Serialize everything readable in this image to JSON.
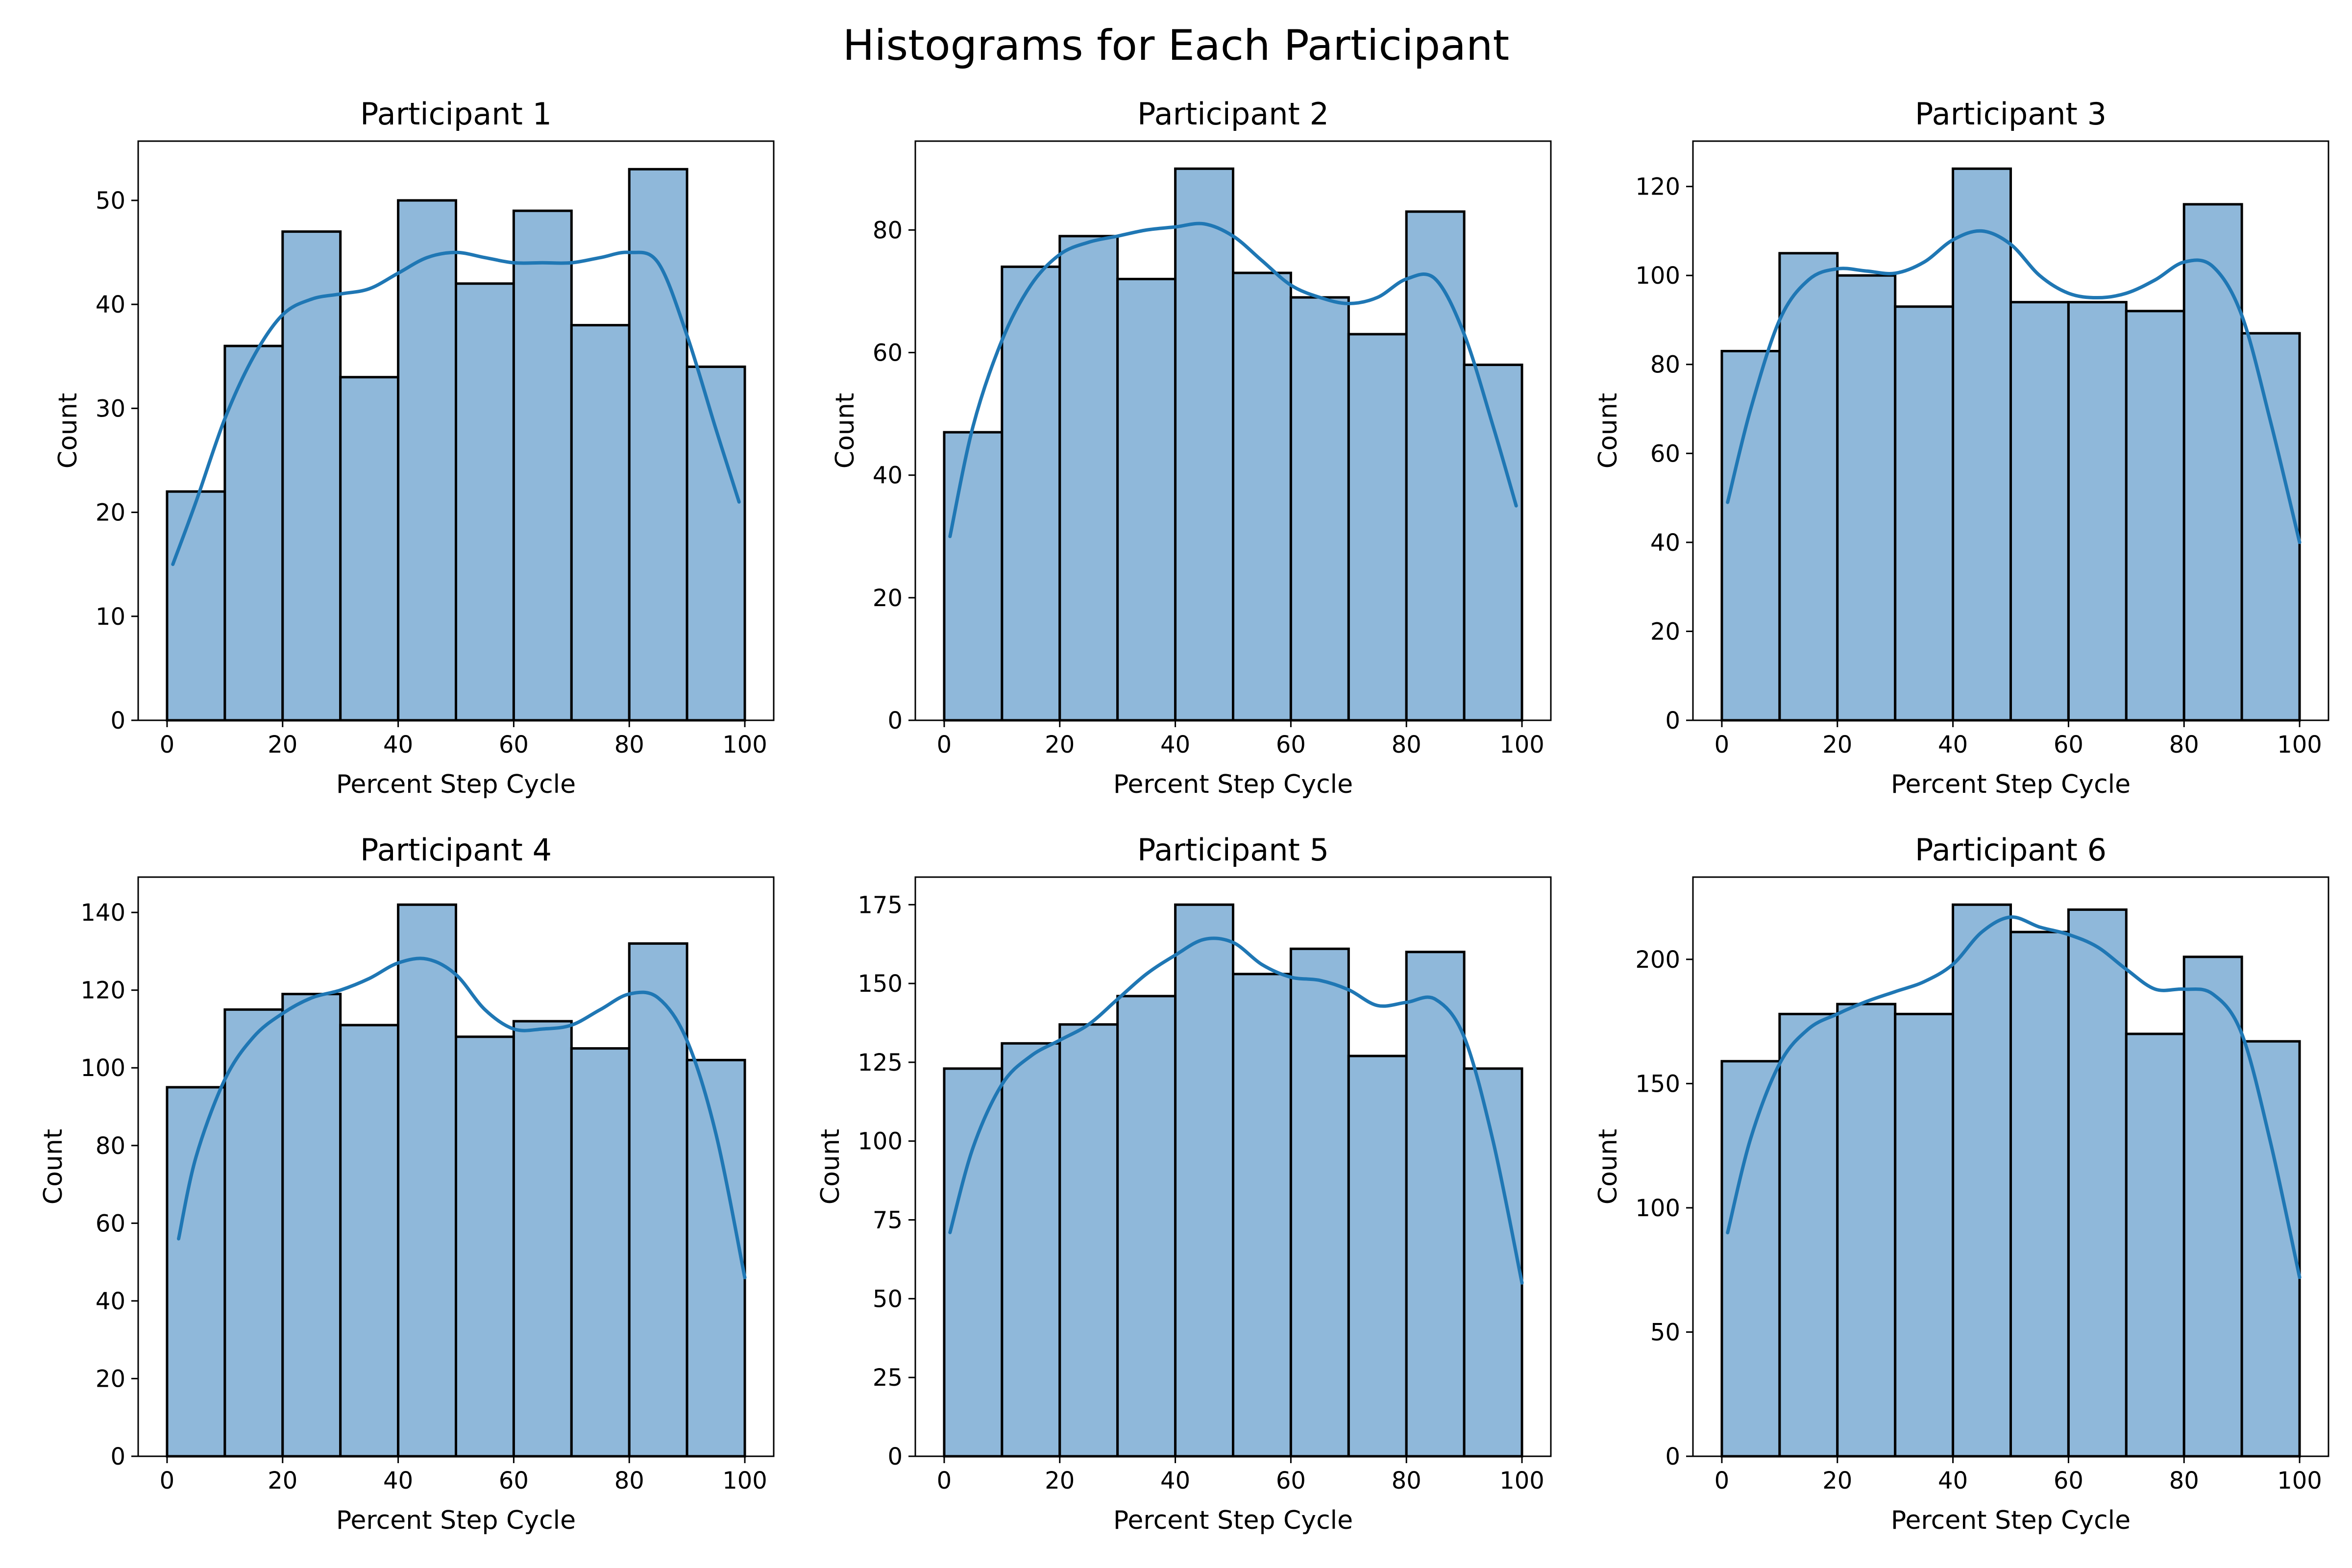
{
  "figure": {
    "title": "Histograms for Each Participant",
    "colors": {
      "bar_fill": "#8fb8da",
      "bar_edge": "#000000",
      "kde_line": "#1f77b4"
    }
  },
  "chart_data": [
    {
      "type": "bar",
      "title": "Participant 1",
      "xlabel": "Percent Step Cycle",
      "ylabel": "Count",
      "xlim": [
        -5,
        105
      ],
      "ylim": [
        0,
        55.7
      ],
      "xticks": [
        0,
        20,
        40,
        60,
        80,
        100
      ],
      "yticks": [
        0,
        10,
        20,
        30,
        40,
        50
      ],
      "bin_edges": [
        0,
        10,
        20,
        30,
        40,
        50,
        60,
        70,
        80,
        90,
        100
      ],
      "values": [
        22,
        36,
        47,
        33,
        50,
        42,
        49,
        38,
        53,
        34
      ],
      "kde": {
        "x": [
          1,
          5,
          10,
          15,
          20,
          25,
          30,
          35,
          40,
          45,
          50,
          55,
          60,
          65,
          70,
          75,
          80,
          85,
          90,
          95,
          99
        ],
        "y": [
          15,
          21,
          29,
          35,
          39,
          40.5,
          41,
          41.5,
          43,
          44.5,
          45,
          44.5,
          44,
          44,
          44,
          44.5,
          45,
          44,
          37,
          28,
          21
        ]
      }
    },
    {
      "type": "bar",
      "title": "Participant 2",
      "xlabel": "Percent Step Cycle",
      "ylabel": "Count",
      "xlim": [
        -5,
        105
      ],
      "ylim": [
        0,
        94.5
      ],
      "xticks": [
        0,
        20,
        40,
        60,
        80,
        100
      ],
      "yticks": [
        0,
        20,
        40,
        60,
        80
      ],
      "bin_edges": [
        0,
        10,
        20,
        30,
        40,
        50,
        60,
        70,
        80,
        90,
        100
      ],
      "values": [
        47,
        74,
        79,
        72,
        90,
        73,
        69,
        63,
        83,
        58
      ],
      "kde": {
        "x": [
          1,
          5,
          10,
          15,
          20,
          25,
          30,
          35,
          40,
          45,
          50,
          55,
          60,
          65,
          70,
          75,
          80,
          85,
          90,
          95,
          99
        ],
        "y": [
          30,
          48,
          62,
          71,
          76,
          78,
          79,
          80,
          80.5,
          81,
          79,
          75,
          71,
          69,
          68,
          69,
          72,
          72,
          63,
          48,
          35
        ]
      }
    },
    {
      "type": "bar",
      "title": "Participant 3",
      "xlabel": "Percent Step Cycle",
      "ylabel": "Count",
      "xlim": [
        -5,
        105
      ],
      "ylim": [
        0,
        130.2
      ],
      "xticks": [
        0,
        20,
        40,
        60,
        80,
        100
      ],
      "yticks": [
        0,
        20,
        40,
        60,
        80,
        100,
        120
      ],
      "bin_edges": [
        0,
        10,
        20,
        30,
        40,
        50,
        60,
        70,
        80,
        90,
        100
      ],
      "values": [
        83,
        105,
        100,
        93,
        124,
        94,
        94,
        92,
        116,
        87
      ],
      "kde": {
        "x": [
          1,
          5,
          10,
          15,
          20,
          25,
          30,
          35,
          40,
          45,
          50,
          55,
          60,
          65,
          70,
          75,
          80,
          85,
          90,
          95,
          100
        ],
        "y": [
          49,
          70,
          90,
          99,
          101.5,
          101,
          100.5,
          103,
          108,
          110,
          107,
          100,
          96,
          95,
          96,
          99,
          103,
          102,
          91,
          67,
          40
        ]
      }
    },
    {
      "type": "bar",
      "title": "Participant 4",
      "xlabel": "Percent Step Cycle",
      "ylabel": "Count",
      "xlim": [
        -5,
        105
      ],
      "ylim": [
        0,
        149.1
      ],
      "xticks": [
        0,
        20,
        40,
        60,
        80,
        100
      ],
      "yticks": [
        0,
        20,
        40,
        60,
        80,
        100,
        120,
        140
      ],
      "bin_edges": [
        0,
        10,
        20,
        30,
        40,
        50,
        60,
        70,
        80,
        90,
        100
      ],
      "values": [
        95,
        115,
        119,
        111,
        142,
        108,
        112,
        105,
        132,
        102
      ],
      "kde": {
        "x": [
          2,
          5,
          10,
          15,
          20,
          25,
          30,
          35,
          40,
          45,
          50,
          55,
          60,
          65,
          70,
          75,
          80,
          85,
          90,
          95,
          100
        ],
        "y": [
          56,
          77,
          97,
          108,
          114,
          118,
          120,
          123,
          127,
          128,
          124,
          115,
          110,
          110,
          111,
          115,
          119,
          118,
          107,
          83,
          46
        ]
      }
    },
    {
      "type": "bar",
      "title": "Participant 5",
      "xlabel": "Percent Step Cycle",
      "ylabel": "Count",
      "xlim": [
        -5,
        105
      ],
      "ylim": [
        0,
        183.75
      ],
      "xticks": [
        0,
        20,
        40,
        60,
        80,
        100
      ],
      "yticks": [
        0,
        25,
        50,
        75,
        100,
        125,
        150,
        175
      ],
      "bin_edges": [
        0,
        10,
        20,
        30,
        40,
        50,
        60,
        70,
        80,
        90,
        100
      ],
      "values": [
        123,
        131,
        137,
        146,
        175,
        153,
        161,
        127,
        160,
        123
      ],
      "kde": {
        "x": [
          1,
          5,
          10,
          15,
          20,
          25,
          30,
          35,
          40,
          45,
          50,
          55,
          60,
          65,
          70,
          75,
          80,
          85,
          90,
          95,
          100
        ],
        "y": [
          71,
          98,
          118,
          127,
          132,
          137,
          145,
          153,
          159,
          164,
          163,
          156,
          152,
          151,
          148,
          143,
          144,
          145,
          133,
          100,
          55
        ]
      }
    },
    {
      "type": "bar",
      "title": "Participant 6",
      "xlabel": "Percent Step Cycle",
      "ylabel": "Count",
      "xlim": [
        -5,
        105
      ],
      "ylim": [
        0,
        233.1
      ],
      "xticks": [
        0,
        20,
        40,
        60,
        80,
        100
      ],
      "yticks": [
        0,
        50,
        100,
        150,
        200
      ],
      "bin_edges": [
        0,
        10,
        20,
        30,
        40,
        50,
        60,
        70,
        80,
        90,
        100
      ],
      "values": [
        159,
        178,
        182,
        178,
        222,
        211,
        220,
        170,
        201,
        167
      ],
      "kde": {
        "x": [
          1,
          5,
          10,
          15,
          20,
          25,
          30,
          35,
          40,
          45,
          50,
          55,
          60,
          65,
          70,
          75,
          80,
          85,
          90,
          95,
          100
        ],
        "y": [
          90,
          128,
          158,
          172,
          178,
          183,
          187,
          191,
          198,
          211,
          217,
          213,
          210,
          205,
          196,
          188,
          188,
          186,
          170,
          126,
          72
        ]
      }
    }
  ]
}
